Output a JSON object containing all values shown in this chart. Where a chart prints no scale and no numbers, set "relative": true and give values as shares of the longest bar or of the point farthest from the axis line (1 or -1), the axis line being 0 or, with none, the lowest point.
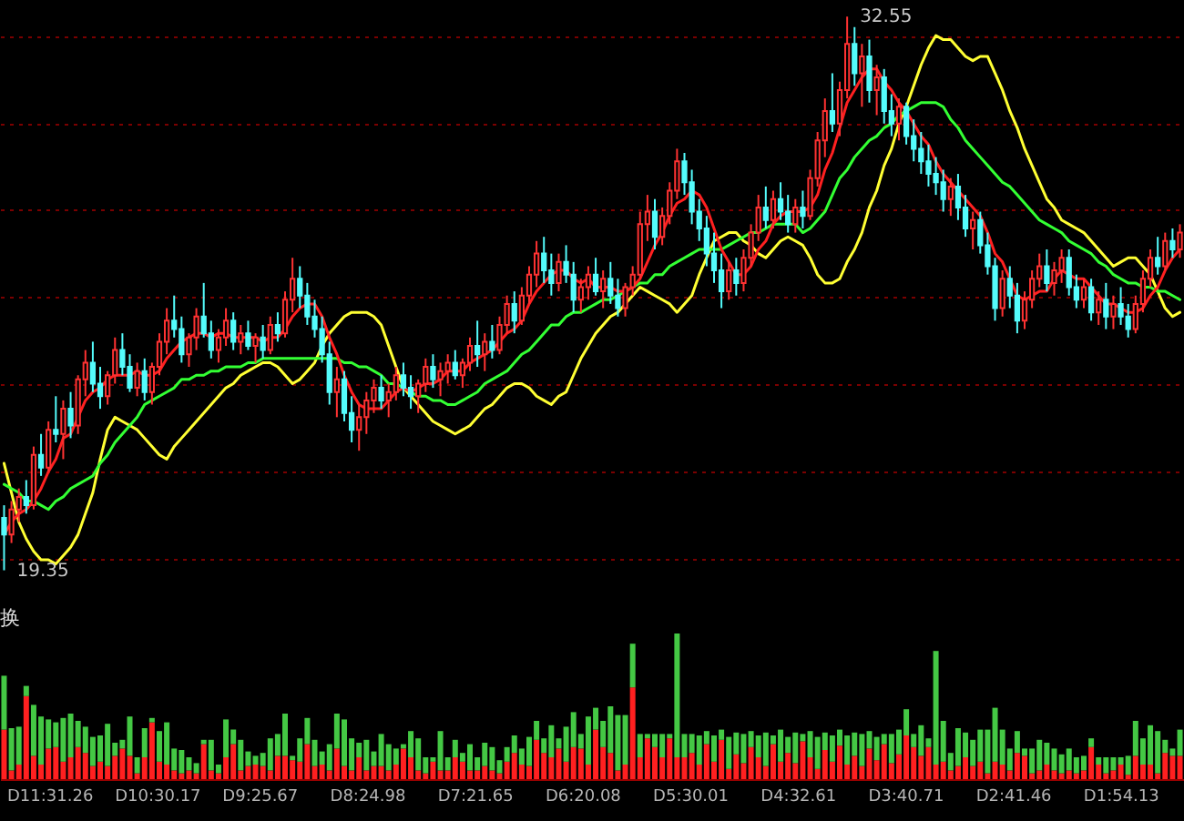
{
  "chart_data": [
    {
      "type": "candlestick",
      "tick_labels": false,
      "grid": "y",
      "yticks": [
        {
          "value": 19.64,
          "label": null
        },
        {
          "value": 21.72,
          "label": null
        },
        {
          "value": 23.79,
          "label": null
        },
        {
          "value": 25.87,
          "label": null
        },
        {
          "value": 27.94,
          "label": null
        },
        {
          "value": 30.0,
          "label": null
        },
        {
          "value": 32.09,
          "label": null
        }
      ],
      "categories": [
        null,
        null,
        null,
        null,
        null,
        null,
        null,
        null,
        null,
        null,
        null,
        null,
        null,
        null,
        null,
        null,
        null,
        null,
        null,
        null,
        null,
        null,
        null,
        null,
        null,
        null,
        null,
        null,
        null,
        null,
        null,
        null,
        null,
        null,
        null,
        null,
        null,
        null,
        null,
        null,
        null,
        null,
        null,
        null,
        null,
        null,
        null,
        null,
        null,
        null,
        null,
        null,
        null,
        null,
        null,
        null,
        null,
        null,
        null,
        null,
        null,
        null,
        null,
        null,
        null,
        null,
        null,
        null,
        null,
        null,
        null,
        null,
        null,
        null,
        null,
        null,
        null,
        null,
        null,
        null,
        null,
        null,
        null,
        null,
        null,
        null,
        null,
        null,
        null,
        null,
        null,
        null,
        null,
        null,
        null,
        null,
        null,
        null,
        null,
        null,
        null,
        null,
        null,
        null,
        null,
        null,
        null,
        null,
        null,
        null,
        null,
        null,
        null,
        null,
        null,
        null,
        null,
        null,
        null,
        null,
        null,
        null,
        null,
        null,
        null,
        null,
        null,
        null,
        null,
        null,
        null,
        null,
        null,
        null,
        null,
        null,
        null,
        null,
        null,
        null,
        null,
        null,
        null,
        null,
        null,
        null,
        null,
        null,
        null,
        null,
        null,
        null,
        null,
        null,
        null,
        null,
        null,
        null,
        null,
        null
      ],
      "ohlc": [
        [
          20.6,
          20.9,
          19.35,
          20.2
        ],
        [
          20.2,
          21.0,
          20.0,
          20.8
        ],
        [
          20.8,
          21.3,
          20.5,
          21.1
        ],
        [
          21.1,
          21.5,
          20.7,
          20.9
        ],
        [
          20.9,
          22.3,
          20.8,
          22.1
        ],
        [
          22.1,
          22.6,
          21.6,
          21.8
        ],
        [
          21.8,
          22.9,
          21.7,
          22.7
        ],
        [
          22.7,
          23.5,
          22.4,
          22.6
        ],
        [
          22.6,
          23.4,
          22.0,
          23.2
        ],
        [
          23.2,
          23.6,
          22.5,
          22.8
        ],
        [
          22.8,
          24.0,
          22.6,
          23.9
        ],
        [
          23.9,
          24.6,
          23.5,
          24.3
        ],
        [
          24.3,
          24.8,
          23.6,
          23.8
        ],
        [
          23.8,
          24.2,
          23.2,
          23.5
        ],
        [
          23.5,
          24.1,
          23.3,
          24.0
        ],
        [
          24.0,
          24.9,
          23.8,
          24.6
        ],
        [
          24.6,
          25.0,
          24.0,
          24.2
        ],
        [
          24.2,
          24.5,
          23.6,
          23.7
        ],
        [
          23.7,
          24.3,
          23.5,
          24.1
        ],
        [
          24.1,
          24.4,
          23.4,
          23.6
        ],
        [
          23.6,
          24.3,
          23.3,
          24.2
        ],
        [
          24.2,
          25.0,
          24.0,
          24.8
        ],
        [
          24.8,
          25.6,
          24.5,
          25.3
        ],
        [
          25.3,
          25.9,
          24.9,
          25.1
        ],
        [
          25.1,
          25.4,
          24.3,
          24.5
        ],
        [
          24.5,
          25.0,
          24.2,
          24.9
        ],
        [
          24.9,
          25.6,
          24.6,
          25.4
        ],
        [
          25.4,
          26.2,
          24.9,
          25.0
        ],
        [
          25.0,
          25.3,
          24.4,
          24.6
        ],
        [
          24.6,
          25.1,
          24.3,
          24.9
        ],
        [
          24.9,
          25.6,
          24.7,
          25.3
        ],
        [
          25.3,
          25.5,
          24.6,
          24.8
        ],
        [
          24.8,
          25.2,
          24.5,
          25.0
        ],
        [
          25.0,
          25.3,
          24.6,
          24.7
        ],
        [
          24.7,
          25.0,
          24.3,
          24.9
        ],
        [
          24.9,
          25.2,
          24.4,
          24.6
        ],
        [
          24.6,
          25.4,
          24.5,
          25.2
        ],
        [
          25.2,
          25.5,
          24.8,
          25.0
        ],
        [
          25.0,
          26.0,
          24.9,
          25.8
        ],
        [
          25.8,
          26.8,
          25.5,
          26.3
        ],
        [
          26.3,
          26.6,
          25.6,
          25.9
        ],
        [
          25.9,
          26.2,
          25.2,
          25.4
        ],
        [
          25.4,
          25.8,
          24.9,
          25.1
        ],
        [
          25.1,
          25.4,
          24.3,
          24.5
        ],
        [
          24.5,
          24.8,
          23.3,
          23.6
        ],
        [
          23.6,
          24.2,
          23.0,
          23.9
        ],
        [
          23.9,
          24.1,
          22.9,
          23.1
        ],
        [
          23.1,
          23.5,
          22.4,
          22.7
        ],
        [
          22.7,
          23.3,
          22.2,
          23.0
        ],
        [
          23.0,
          23.6,
          22.6,
          23.4
        ],
        [
          23.4,
          23.9,
          23.1,
          23.7
        ],
        [
          23.7,
          24.0,
          23.2,
          23.4
        ],
        [
          23.4,
          23.8,
          23.0,
          23.6
        ],
        [
          23.6,
          24.2,
          23.4,
          24.0
        ],
        [
          24.0,
          24.3,
          23.5,
          23.7
        ],
        [
          23.7,
          24.0,
          23.2,
          23.5
        ],
        [
          23.5,
          23.9,
          23.1,
          23.8
        ],
        [
          23.8,
          24.4,
          23.6,
          24.2
        ],
        [
          24.2,
          24.5,
          23.7,
          23.9
        ],
        [
          23.9,
          24.3,
          23.5,
          24.1
        ],
        [
          24.1,
          24.5,
          23.8,
          24.3
        ],
        [
          24.3,
          24.6,
          23.9,
          24.0
        ],
        [
          24.0,
          24.4,
          23.7,
          24.3
        ],
        [
          24.3,
          24.9,
          24.1,
          24.7
        ],
        [
          24.7,
          25.3,
          24.2,
          24.5
        ],
        [
          24.5,
          25.0,
          24.1,
          24.8
        ],
        [
          24.8,
          25.2,
          24.4,
          24.6
        ],
        [
          24.6,
          25.4,
          24.5,
          25.2
        ],
        [
          25.2,
          25.9,
          25.0,
          25.7
        ],
        [
          25.7,
          26.0,
          25.0,
          25.3
        ],
        [
          25.3,
          26.1,
          25.2,
          25.9
        ],
        [
          25.9,
          26.6,
          25.7,
          26.4
        ],
        [
          26.4,
          27.2,
          26.1,
          26.9
        ],
        [
          26.9,
          27.3,
          26.2,
          26.5
        ],
        [
          26.5,
          26.9,
          25.9,
          26.2
        ],
        [
          26.2,
          26.9,
          26.0,
          26.7
        ],
        [
          26.7,
          27.1,
          26.2,
          26.4
        ],
        [
          26.4,
          26.7,
          25.5,
          25.8
        ],
        [
          25.8,
          26.3,
          25.5,
          26.1
        ],
        [
          26.1,
          26.6,
          25.8,
          26.4
        ],
        [
          26.4,
          26.8,
          25.9,
          26.0
        ],
        [
          26.0,
          26.5,
          25.6,
          26.3
        ],
        [
          26.3,
          26.7,
          25.7,
          25.9
        ],
        [
          25.9,
          26.3,
          25.4,
          25.6
        ],
        [
          25.6,
          26.2,
          25.4,
          26.1
        ],
        [
          26.1,
          26.6,
          25.9,
          26.4
        ],
        [
          26.4,
          27.9,
          26.3,
          27.6
        ],
        [
          27.6,
          28.3,
          27.2,
          27.9
        ],
        [
          27.9,
          28.2,
          27.0,
          27.3
        ],
        [
          27.3,
          28.0,
          27.1,
          27.8
        ],
        [
          27.8,
          28.6,
          27.6,
          28.4
        ],
        [
          28.4,
          29.4,
          28.2,
          29.1
        ],
        [
          29.1,
          29.3,
          28.3,
          28.6
        ],
        [
          28.6,
          28.9,
          27.6,
          27.9
        ],
        [
          27.9,
          28.2,
          27.2,
          27.5
        ],
        [
          27.5,
          27.8,
          26.6,
          26.9
        ],
        [
          26.9,
          27.4,
          26.2,
          26.5
        ],
        [
          26.5,
          26.9,
          25.6,
          26.0
        ],
        [
          26.0,
          26.7,
          25.8,
          26.5
        ],
        [
          26.5,
          26.8,
          25.9,
          26.2
        ],
        [
          26.2,
          27.0,
          26.0,
          26.8
        ],
        [
          26.8,
          27.6,
          26.6,
          27.4
        ],
        [
          27.4,
          28.3,
          27.2,
          28.0
        ],
        [
          28.0,
          28.5,
          27.5,
          27.7
        ],
        [
          27.7,
          28.4,
          27.5,
          28.2
        ],
        [
          28.2,
          28.6,
          27.7,
          27.9
        ],
        [
          27.9,
          28.3,
          27.4,
          27.6
        ],
        [
          27.6,
          28.2,
          27.4,
          28.0
        ],
        [
          28.0,
          28.4,
          27.5,
          27.8
        ],
        [
          27.8,
          28.9,
          27.7,
          28.7
        ],
        [
          28.7,
          29.8,
          28.5,
          29.6
        ],
        [
          29.6,
          30.6,
          29.2,
          30.3
        ],
        [
          30.3,
          31.2,
          29.8,
          30.0
        ],
        [
          30.0,
          31.0,
          29.7,
          30.8
        ],
        [
          30.8,
          32.55,
          30.6,
          31.9
        ],
        [
          31.9,
          32.3,
          30.9,
          31.2
        ],
        [
          31.2,
          31.9,
          30.4,
          31.6
        ],
        [
          31.6,
          32.0,
          30.5,
          30.8
        ],
        [
          30.8,
          31.4,
          30.2,
          31.1
        ],
        [
          31.1,
          31.3,
          30.0,
          30.3
        ],
        [
          30.3,
          30.7,
          29.7,
          30.0
        ],
        [
          30.0,
          30.6,
          29.6,
          30.4
        ],
        [
          30.4,
          30.5,
          29.5,
          29.7
        ],
        [
          29.7,
          30.1,
          29.1,
          29.4
        ],
        [
          29.4,
          29.8,
          28.8,
          29.1
        ],
        [
          29.1,
          29.5,
          28.5,
          28.8
        ],
        [
          28.8,
          29.2,
          28.3,
          28.6
        ],
        [
          28.6,
          28.9,
          27.9,
          28.2
        ],
        [
          28.2,
          28.7,
          27.8,
          28.5
        ],
        [
          28.5,
          28.8,
          27.7,
          28.0
        ],
        [
          28.0,
          28.3,
          27.3,
          27.5
        ],
        [
          27.5,
          27.9,
          27.0,
          27.7
        ],
        [
          27.7,
          27.9,
          26.9,
          27.1
        ],
        [
          27.1,
          27.4,
          26.4,
          26.6
        ],
        [
          26.6,
          26.8,
          25.3,
          25.6
        ],
        [
          25.6,
          26.5,
          25.4,
          26.3
        ],
        [
          26.3,
          26.6,
          25.6,
          25.9
        ],
        [
          25.9,
          26.2,
          25.0,
          25.3
        ],
        [
          25.3,
          26.0,
          25.1,
          25.8
        ],
        [
          25.8,
          26.5,
          25.6,
          26.3
        ],
        [
          26.3,
          26.9,
          26.1,
          26.6
        ],
        [
          26.6,
          27.0,
          26.0,
          26.2
        ],
        [
          26.2,
          26.7,
          25.9,
          26.5
        ],
        [
          26.5,
          27.0,
          26.2,
          26.8
        ],
        [
          26.8,
          27.0,
          25.9,
          26.1
        ],
        [
          26.1,
          26.4,
          25.6,
          25.8
        ],
        [
          25.8,
          26.3,
          25.6,
          26.1
        ],
        [
          26.1,
          26.3,
          25.3,
          25.5
        ],
        [
          25.5,
          26.0,
          25.2,
          25.8
        ],
        [
          25.8,
          26.2,
          25.1,
          25.4
        ],
        [
          25.4,
          25.9,
          25.1,
          25.7
        ],
        [
          25.7,
          26.1,
          25.2,
          25.4
        ],
        [
          25.4,
          25.7,
          24.9,
          25.1
        ],
        [
          25.1,
          25.9,
          25.0,
          25.7
        ],
        [
          25.7,
          26.5,
          25.5,
          26.3
        ],
        [
          26.3,
          27.0,
          26.1,
          26.8
        ],
        [
          26.8,
          27.3,
          26.4,
          26.6
        ],
        [
          26.6,
          27.4,
          26.5,
          27.2
        ],
        [
          27.2,
          27.5,
          26.8,
          27.0
        ],
        [
          27.0,
          27.6,
          26.8,
          27.4
        ]
      ],
      "colors": [
        "#54fcfc",
        "#ff3232",
        "#ff3232",
        "#54fcfc",
        "#ff3232",
        "#54fcfc",
        "#ff3232",
        "#54fcfc",
        "#ff3232",
        "#54fcfc",
        "#ff3232",
        "#ff3232",
        "#54fcfc",
        "#54fcfc",
        "#ff3232",
        "#ff3232",
        "#54fcfc",
        "#54fcfc",
        "#ff3232",
        "#54fcfc",
        "#ff3232",
        "#ff3232",
        "#ff3232",
        "#54fcfc",
        "#54fcfc",
        "#ff3232",
        "#ff3232",
        "#54fcfc",
        "#54fcfc",
        "#ff3232",
        "#ff3232",
        "#54fcfc",
        "#ff3232",
        "#54fcfc",
        "#ff3232",
        "#54fcfc",
        "#ff3232",
        "#54fcfc",
        "#ff3232",
        "#ff3232",
        "#54fcfc",
        "#54fcfc",
        "#54fcfc",
        "#54fcfc",
        "#54fcfc",
        "#ff3232",
        "#54fcfc",
        "#54fcfc",
        "#ff3232",
        "#ff3232",
        "#ff3232",
        "#54fcfc",
        "#ff3232",
        "#ff3232",
        "#54fcfc",
        "#54fcfc",
        "#ff3232",
        "#ff3232",
        "#54fcfc",
        "#ff3232",
        "#ff3232",
        "#54fcfc",
        "#ff3232",
        "#ff3232",
        "#54fcfc",
        "#ff3232",
        "#54fcfc",
        "#ff3232",
        "#ff3232",
        "#54fcfc",
        "#ff3232",
        "#ff3232",
        "#ff3232",
        "#54fcfc",
        "#54fcfc",
        "#ff3232",
        "#54fcfc",
        "#54fcfc",
        "#ff3232",
        "#ff3232",
        "#54fcfc",
        "#ff3232",
        "#54fcfc",
        "#54fcfc",
        "#ff3232",
        "#ff3232",
        "#ff3232",
        "#ff3232",
        "#54fcfc",
        "#ff3232",
        "#ff3232",
        "#ff3232",
        "#54fcfc",
        "#54fcfc",
        "#54fcfc",
        "#54fcfc",
        "#54fcfc",
        "#54fcfc",
        "#ff3232",
        "#54fcfc",
        "#ff3232",
        "#ff3232",
        "#ff3232",
        "#54fcfc",
        "#ff3232",
        "#54fcfc",
        "#54fcfc",
        "#ff3232",
        "#54fcfc",
        "#ff3232",
        "#ff3232",
        "#ff3232",
        "#54fcfc",
        "#ff3232",
        "#ff3232",
        "#54fcfc",
        "#ff3232",
        "#54fcfc",
        "#ff3232",
        "#54fcfc",
        "#54fcfc",
        "#ff3232",
        "#54fcfc",
        "#54fcfc",
        "#54fcfc",
        "#54fcfc",
        "#54fcfc",
        "#54fcfc",
        "#ff3232",
        "#54fcfc",
        "#54fcfc",
        "#ff3232",
        "#54fcfc",
        "#54fcfc",
        "#54fcfc",
        "#ff3232",
        "#54fcfc",
        "#54fcfc",
        "#ff3232",
        "#ff3232",
        "#ff3232",
        "#54fcfc",
        "#ff3232",
        "#ff3232",
        "#54fcfc",
        "#54fcfc",
        "#ff3232",
        "#54fcfc",
        "#ff3232",
        "#54fcfc",
        "#ff3232",
        "#54fcfc",
        "#54fcfc",
        "#ff3232",
        "#ff3232",
        "#ff3232",
        "#54fcfc",
        "#ff3232",
        "#54fcfc",
        "#ff3232"
      ],
      "series": [
        {
          "type": "line",
          "color": "#ffff33",
          "values": [
            21.9,
            21.2,
            20.5,
            20.1,
            19.8,
            19.6,
            19.6,
            19.5,
            19.7,
            19.9,
            20.2,
            20.7,
            21.2,
            22.0,
            22.7,
            23.0,
            22.9,
            22.8,
            22.7,
            22.5,
            22.3,
            22.1,
            22.0,
            22.3,
            22.5,
            22.7,
            22.9,
            23.1,
            23.3,
            23.5,
            23.7,
            23.8,
            24.0,
            24.1,
            24.2,
            24.3,
            24.3,
            24.2,
            24.0,
            23.8,
            23.9,
            24.1,
            24.3,
            24.7,
            25.0,
            25.2,
            25.4,
            25.5,
            25.5,
            25.5,
            25.4,
            25.2,
            24.7,
            24.2,
            23.7,
            23.5,
            23.3,
            23.1,
            22.9,
            22.8,
            22.7,
            22.6,
            22.7,
            22.8,
            23.0,
            23.2,
            23.3,
            23.5,
            23.7,
            23.8,
            23.8,
            23.7,
            23.5,
            23.4,
            23.3,
            23.5,
            23.6,
            24.0,
            24.4,
            24.7,
            25.0,
            25.2,
            25.4,
            25.5,
            25.7,
            25.9,
            26.1,
            26.0,
            25.9,
            25.8,
            25.7,
            25.5,
            25.7,
            25.9,
            26.4,
            26.8,
            27.2,
            27.3,
            27.4,
            27.4,
            27.2,
            27.1,
            26.9,
            26.8,
            27.0,
            27.2,
            27.3,
            27.2,
            27.1,
            26.8,
            26.4,
            26.2,
            26.2,
            26.3,
            26.7,
            27.0,
            27.4,
            28.0,
            28.4,
            29.0,
            29.4,
            30.0,
            30.4,
            30.9,
            31.4,
            31.8,
            32.1,
            32.0,
            32.0,
            31.8,
            31.6,
            31.5,
            31.6,
            31.6,
            31.2,
            30.8,
            30.3,
            29.9,
            29.4,
            29.0,
            28.6,
            28.2,
            28.0,
            27.7,
            27.6,
            27.5,
            27.4,
            27.2,
            27.0,
            26.8,
            26.6,
            26.7,
            26.8,
            26.8,
            26.6,
            26.4,
            26.0,
            25.6,
            25.4,
            25.5
          ]
        },
        {
          "type": "line",
          "color": "#33ff33",
          "values": [
            21.4,
            21.3,
            21.2,
            21.0,
            21.0,
            20.9,
            20.8,
            21.0,
            21.1,
            21.3,
            21.4,
            21.5,
            21.6,
            21.9,
            22.1,
            22.4,
            22.6,
            22.8,
            23.0,
            23.3,
            23.4,
            23.5,
            23.6,
            23.7,
            23.9,
            23.9,
            24.0,
            24.0,
            24.1,
            24.1,
            24.2,
            24.2,
            24.2,
            24.3,
            24.3,
            24.4,
            24.4,
            24.4,
            24.4,
            24.4,
            24.4,
            24.4,
            24.4,
            24.4,
            24.4,
            24.4,
            24.3,
            24.3,
            24.2,
            24.2,
            24.1,
            24.0,
            23.8,
            23.8,
            23.7,
            23.6,
            23.5,
            23.5,
            23.4,
            23.4,
            23.3,
            23.3,
            23.4,
            23.5,
            23.6,
            23.8,
            23.9,
            24.0,
            24.1,
            24.3,
            24.5,
            24.6,
            24.8,
            25.0,
            25.2,
            25.2,
            25.4,
            25.5,
            25.5,
            25.6,
            25.7,
            25.8,
            25.8,
            25.9,
            26.0,
            26.1,
            26.2,
            26.2,
            26.4,
            26.4,
            26.6,
            26.7,
            26.8,
            26.9,
            27.0,
            27.0,
            27.0,
            27.0,
            27.1,
            27.2,
            27.3,
            27.4,
            27.4,
            27.5,
            27.6,
            27.6,
            27.6,
            27.6,
            27.4,
            27.5,
            27.7,
            27.9,
            28.3,
            28.7,
            28.9,
            29.2,
            29.4,
            29.6,
            29.7,
            29.9,
            30.0,
            30.2,
            30.3,
            30.4,
            30.5,
            30.5,
            30.5,
            30.4,
            30.1,
            29.9,
            29.6,
            29.4,
            29.2,
            29.0,
            28.8,
            28.6,
            28.5,
            28.3,
            28.1,
            27.9,
            27.7,
            27.6,
            27.5,
            27.4,
            27.2,
            27.1,
            27.0,
            26.9,
            26.7,
            26.6,
            26.4,
            26.3,
            26.2,
            26.2,
            26.1,
            26.1,
            26.0,
            26.0,
            25.9,
            25.8
          ]
        },
        {
          "type": "line",
          "color": "#ff2020",
          "values": [
            20.2,
            20.5,
            20.7,
            20.8,
            21.0,
            21.3,
            21.7,
            22.0,
            22.5,
            22.6,
            23.0,
            23.4,
            23.6,
            23.7,
            23.9,
            24.0,
            24.0,
            24.0,
            24.1,
            24.0,
            24.0,
            24.1,
            24.4,
            24.6,
            24.8,
            24.9,
            25.0,
            25.0,
            24.9,
            25.0,
            25.0,
            24.9,
            24.9,
            24.9,
            24.9,
            24.8,
            24.9,
            24.9,
            25.1,
            25.4,
            25.6,
            25.7,
            25.7,
            25.4,
            24.9,
            24.5,
            24.0,
            23.6,
            23.3,
            23.2,
            23.2,
            23.2,
            23.4,
            23.6,
            23.7,
            23.6,
            23.7,
            23.8,
            23.8,
            23.9,
            24.1,
            24.1,
            24.1,
            24.3,
            24.4,
            24.5,
            24.6,
            24.8,
            25.0,
            25.1,
            25.3,
            25.7,
            26.0,
            26.2,
            26.4,
            26.5,
            26.5,
            26.3,
            26.2,
            26.3,
            26.1,
            26.1,
            26.1,
            26.0,
            26.0,
            26.1,
            26.3,
            26.7,
            27.1,
            27.4,
            27.8,
            28.1,
            28.2,
            28.4,
            28.3,
            28.0,
            27.5,
            27.0,
            26.7,
            26.4,
            26.4,
            26.6,
            27.0,
            27.2,
            27.6,
            27.8,
            27.9,
            27.9,
            27.9,
            28.0,
            28.3,
            28.9,
            29.3,
            29.9,
            30.5,
            30.8,
            31.1,
            31.3,
            31.3,
            31.0,
            30.8,
            30.5,
            30.3,
            30.0,
            29.7,
            29.5,
            29.1,
            28.8,
            28.6,
            28.4,
            28.2,
            28.0,
            27.8,
            27.4,
            26.9,
            26.7,
            26.3,
            25.9,
            25.8,
            25.9,
            26.0,
            26.0,
            26.3,
            26.5,
            26.4,
            26.3,
            26.3,
            26.1,
            25.9,
            25.7,
            25.7,
            25.6,
            25.5,
            25.5,
            25.6,
            25.9,
            26.1,
            26.5,
            26.8,
            27.0
          ]
        }
      ],
      "annotations": [
        "19.35",
        "32.55"
      ]
    },
    {
      "type": "bar",
      "stacked": true,
      "relative": true,
      "tick_labels": false,
      "title": "换",
      "categories": [
        null,
        null,
        null,
        null,
        null,
        null,
        null,
        null,
        null,
        null,
        null,
        null,
        null,
        null,
        null,
        null,
        null,
        null,
        null,
        null,
        null,
        null,
        null,
        null,
        null,
        null,
        null,
        null,
        null,
        null,
        null,
        null,
        null,
        null,
        null,
        null,
        null,
        null,
        null,
        null,
        null,
        null,
        null,
        null,
        null,
        null,
        null,
        null,
        null,
        null,
        null,
        null,
        null,
        null,
        null,
        null,
        null,
        null,
        null,
        null,
        null,
        null,
        null,
        null,
        null,
        null,
        null,
        null,
        null,
        null,
        null,
        null,
        null,
        null,
        null,
        null,
        null,
        null,
        null,
        null,
        null,
        null,
        null,
        null,
        null,
        null,
        null,
        null,
        null,
        null,
        null,
        null,
        null,
        null,
        null,
        null,
        null,
        null,
        null,
        null,
        null,
        null,
        null,
        null,
        null,
        null,
        null,
        null,
        null,
        null,
        null,
        null,
        null,
        null,
        null,
        null,
        null,
        null,
        null,
        null,
        null,
        null,
        null,
        null,
        null,
        null,
        null,
        null,
        null,
        null,
        null,
        null,
        null,
        null,
        null,
        null,
        null,
        null,
        null,
        null,
        null,
        null,
        null,
        null,
        null,
        null,
        null,
        null,
        null,
        null,
        null,
        null,
        null,
        null,
        null,
        null,
        null,
        null,
        null,
        null
      ],
      "series": [
        {
          "color": "#ff2020",
          "values": [
            0.34,
            0.06,
            0.1,
            0.57,
            0.16,
            0.1,
            0.21,
            0.22,
            0.12,
            0.15,
            0.22,
            0.18,
            0.09,
            0.12,
            0.09,
            0.16,
            0.21,
            0.16,
            0.04,
            0.15,
            0.39,
            0.12,
            0.1,
            0.06,
            0.04,
            0.06,
            0.04,
            0.24,
            0.06,
            0.04,
            0.15,
            0.24,
            0.06,
            0.09,
            0.1,
            0.09,
            0.06,
            0.16,
            0.16,
            0.13,
            0.12,
            0.24,
            0.09,
            0.1,
            0.06,
            0.21,
            0.09,
            0.06,
            0.15,
            0.06,
            0.09,
            0.09,
            0.06,
            0.1,
            0.21,
            0.15,
            0.06,
            0.04,
            0.12,
            0.06,
            0.06,
            0.15,
            0.12,
            0.06,
            0.06,
            0.09,
            0.06,
            0.04,
            0.12,
            0.18,
            0.1,
            0.09,
            0.27,
            0.18,
            0.15,
            0.21,
            0.12,
            0.22,
            0.21,
            0.1,
            0.34,
            0.22,
            0.18,
            0.06,
            0.1,
            0.63,
            0.15,
            0.28,
            0.22,
            0.15,
            0.28,
            0.15,
            0.15,
            0.18,
            0.1,
            0.24,
            0.12,
            0.27,
            0.07,
            0.17,
            0.11,
            0.22,
            0.15,
            0.09,
            0.24,
            0.12,
            0.18,
            0.11,
            0.26,
            0.15,
            0.07,
            0.2,
            0.12,
            0.23,
            0.1,
            0.16,
            0.09,
            0.21,
            0.13,
            0.24,
            0.11,
            0.17,
            0.3,
            0.22,
            0.16,
            0.22,
            0.1,
            0.12,
            0.06,
            0.09,
            0.15,
            0.09,
            0.12,
            0.04,
            0.12,
            0.1,
            0.06,
            0.18,
            0.16,
            0.04,
            0.06,
            0.1,
            0.06,
            0.04,
            0.06,
            0.04,
            0.06,
            0.22,
            0.1,
            0.04,
            0.06,
            0.1,
            0.03,
            0.16,
            0.1,
            0.1,
            0.04,
            0.18,
            0.16,
            0.16
          ]
        },
        {
          "color": "#44c844",
          "values": [
            0.37,
            0.29,
            0.26,
            0.07,
            0.35,
            0.33,
            0.2,
            0.17,
            0.3,
            0.3,
            0.18,
            0.18,
            0.2,
            0.18,
            0.29,
            0.09,
            0.06,
            0.27,
            0.11,
            0.2,
            0.03,
            0.21,
            0.29,
            0.15,
            0.16,
            0.09,
            0.07,
            0.03,
            0.21,
            0.06,
            0.26,
            0.1,
            0.21,
            0.1,
            0.06,
            0.09,
            0.22,
            0.15,
            0.29,
            0.03,
            0.16,
            0.18,
            0.18,
            0.09,
            0.18,
            0.24,
            0.32,
            0.22,
            0.1,
            0.21,
            0.1,
            0.22,
            0.18,
            0.11,
            0.03,
            0.18,
            0.22,
            0.11,
            0.03,
            0.27,
            0.09,
            0.12,
            0.06,
            0.18,
            0.09,
            0.16,
            0.16,
            0.09,
            0.1,
            0.12,
            0.11,
            0.2,
            0.13,
            0.1,
            0.22,
            0.07,
            0.24,
            0.24,
            0.1,
            0.33,
            0.15,
            0.18,
            0.32,
            0.38,
            0.34,
            0.3,
            0.16,
            0.03,
            0.09,
            0.16,
            0.03,
            0.85,
            0.16,
            0.13,
            0.2,
            0.09,
            0.18,
            0.07,
            0.22,
            0.15,
            0.2,
            0.11,
            0.15,
            0.23,
            0.06,
            0.22,
            0.11,
            0.21,
            0.05,
            0.18,
            0.22,
            0.12,
            0.18,
            0.11,
            0.2,
            0.16,
            0.22,
            0.12,
            0.16,
            0.07,
            0.2,
            0.17,
            0.18,
            0.09,
            0.21,
            0.06,
            0.78,
            0.28,
            0.12,
            0.26,
            0.17,
            0.18,
            0.22,
            0.3,
            0.37,
            0.24,
            0.15,
            0.15,
            0.05,
            0.17,
            0.21,
            0.15,
            0.15,
            0.13,
            0.15,
            0.11,
            0.1,
            0.06,
            0.05,
            0.11,
            0.09,
            0.05,
            0.13,
            0.24,
            0.18,
            0.27,
            0.29,
            0.09,
            0.05,
            0.18
          ]
        }
      ],
      "annotations": [
        "D11:31.26",
        "D10:30.17",
        "D9:25.67",
        "D8:24.98",
        "D7:21.65",
        "D6:20.08",
        "D5:30.01",
        "D4:32.61",
        "D3:40.71",
        "D2:41.46",
        "D1:54.13"
      ]
    }
  ]
}
